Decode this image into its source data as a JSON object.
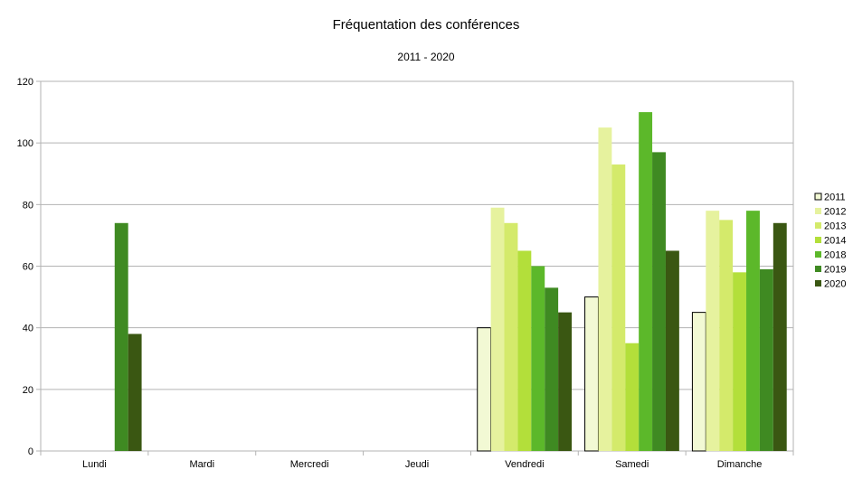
{
  "chart_data": {
    "type": "bar",
    "title": "Fréquentation des conférences",
    "subtitle": "2011 - 2020",
    "xlabel": "",
    "ylabel": "",
    "ylim": [
      0,
      120
    ],
    "yticks": [
      0,
      20,
      40,
      60,
      80,
      100,
      120
    ],
    "grid": true,
    "legend_position": "right",
    "categories": [
      "Lundi",
      "Mardi",
      "Mercredi",
      "Jeudi",
      "Vendredi",
      "Samedi",
      "Dimanche"
    ],
    "series": [
      {
        "name": "2011",
        "color": "#f2f9d4",
        "outline": "#000000",
        "values": [
          0,
          0,
          0,
          0,
          40,
          50,
          45
        ]
      },
      {
        "name": "2012",
        "color": "#e6f29e",
        "values": [
          0,
          0,
          0,
          0,
          79,
          105,
          78
        ]
      },
      {
        "name": "2013",
        "color": "#d4ea6b",
        "values": [
          0,
          0,
          0,
          0,
          74,
          93,
          75
        ]
      },
      {
        "name": "2014",
        "color": "#b3df3a",
        "values": [
          0,
          0,
          0,
          0,
          65,
          35,
          58
        ]
      },
      {
        "name": "2018",
        "color": "#5cb82a",
        "values": [
          0,
          0,
          0,
          0,
          60,
          110,
          78
        ]
      },
      {
        "name": "2019",
        "color": "#3f8a22",
        "values": [
          74,
          0,
          0,
          0,
          53,
          97,
          59
        ]
      },
      {
        "name": "2020",
        "color": "#3a5712",
        "values": [
          38,
          0,
          0,
          0,
          45,
          65,
          74
        ]
      }
    ]
  }
}
